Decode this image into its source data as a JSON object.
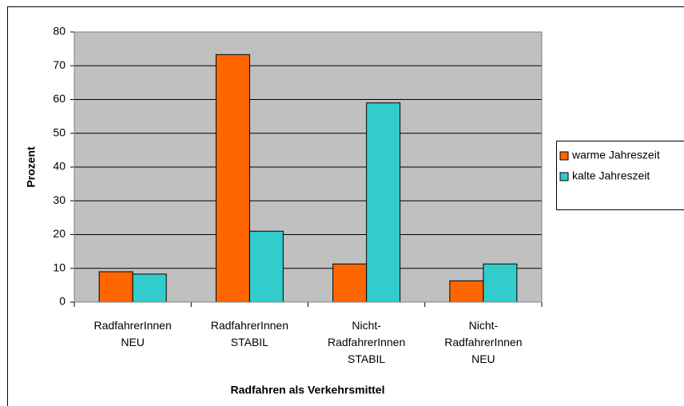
{
  "chart_data": {
    "type": "bar",
    "x_label": "Radfahren als Verkehrsmittel",
    "y_label": "Prozent",
    "categories": [
      [
        "RadfahrerInnen",
        "NEU"
      ],
      [
        "RadfahrerInnen",
        "STABIL"
      ],
      [
        "Nicht-",
        "RadfahrerInnen",
        "STABIL"
      ],
      [
        "Nicht-",
        "RadfahrerInnen",
        "NEU"
      ]
    ],
    "series": [
      {
        "name": "warme Jahreszeit",
        "color": "#ff6600",
        "values": [
          9,
          73.3,
          11.3,
          6.3
        ]
      },
      {
        "name": "kalte Jahreszeit",
        "color": "#33cccc",
        "values": [
          8.3,
          21,
          59,
          11.3
        ]
      }
    ],
    "ylim": [
      0,
      80
    ],
    "yticks": [
      0,
      10,
      20,
      30,
      40,
      50,
      60,
      70,
      80
    ],
    "grid": true,
    "legend": "right",
    "plot_background": "#c0c0c0"
  }
}
